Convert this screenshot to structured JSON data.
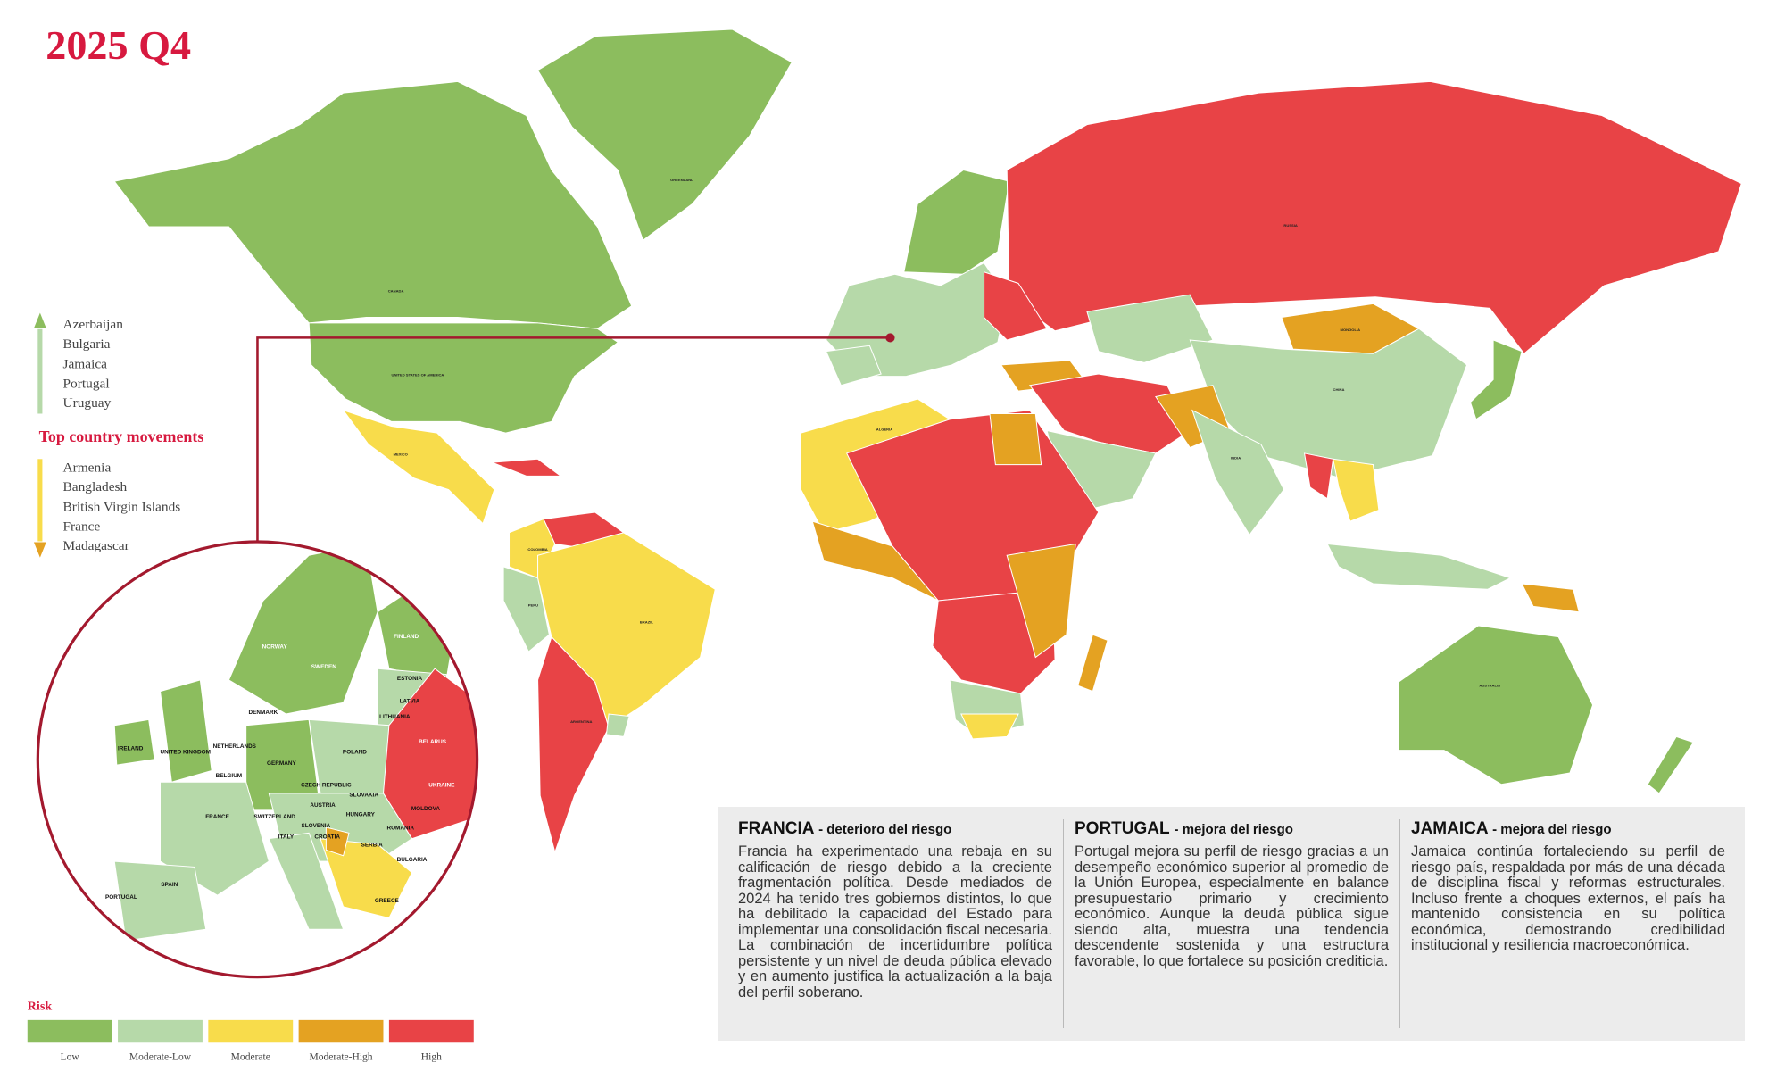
{
  "header": {
    "title": "2025 Q4"
  },
  "movements": {
    "title": "Top country movements",
    "up": [
      "Azerbaijan",
      "Bulgaria",
      "Jamaica",
      "Portugal",
      "Uruguay"
    ],
    "down": [
      "Armenia",
      "Bangladesh",
      "British Virgin Islands",
      "France",
      "Madagascar"
    ]
  },
  "legend": {
    "title": "Risk",
    "items": [
      {
        "label": "Low",
        "color": "#8cbd5e"
      },
      {
        "label": "Moderate-Low",
        "color": "#b6d9a9"
      },
      {
        "label": "Moderate",
        "color": "#f8dc4b"
      },
      {
        "label": "Moderate-High",
        "color": "#e4a222"
      },
      {
        "label": "High",
        "color": "#e84346"
      }
    ]
  },
  "map_labels": [
    "GREENLAND",
    "CANADA",
    "UNITED STATES OF AMERICA",
    "MEXICO",
    "BRAZIL",
    "ARGENTINA",
    "RUSSIA",
    "CHINA",
    "INDIA",
    "MONGOLIA",
    "ALGERIA",
    "AUSTRALIA",
    "PERU",
    "COLOMBIA"
  ],
  "zoom_labels": [
    "NORWAY",
    "SWEDEN",
    "FINLAND",
    "ESTONIA",
    "LATVIA",
    "LITHUANIA",
    "DENMARK",
    "IRELAND",
    "UNITED KINGDOM",
    "NETHERLANDS",
    "BELGIUM",
    "GERMANY",
    "POLAND",
    "BELARUS",
    "UKRAINE",
    "CZECH REPUBLIC",
    "SLOVAKIA",
    "AUSTRIA",
    "HUNGARY",
    "MOLDOVA",
    "ROMANIA",
    "FRANCE",
    "SWITZERLAND",
    "ITALY",
    "SLOVENIA",
    "CROATIA",
    "SERBIA",
    "BULGARIA",
    "SPAIN",
    "PORTUGAL",
    "GREECE"
  ],
  "panels": [
    {
      "country": "FRANCIA",
      "subtitle": "- deterioro del riesgo",
      "text": "Francia ha experimentado una rebaja en su calificación de riesgo debido a la creciente fragmentación política. Desde mediados de 2024 ha tenido tres gobiernos distintos, lo que ha debilitado la capacidad del Estado para implementar una consolidación fiscal necesaria. La combinación de incertidumbre política persistente y un nivel de deuda pública elevado y en aumento justifica la actualización a la baja del perfil soberano."
    },
    {
      "country": "PORTUGAL",
      "subtitle": "- mejora del riesgo",
      "text": "Portugal mejora su perfil de riesgo gracias a un desempeño económico superior al promedio de la Unión Europea, especialmente en balance presupuestario primario y crecimiento económico. Aunque la deuda pública sigue siendo alta, muestra una tendencia descendente sostenida y una estructura favorable, lo que fortalece su posición crediticia."
    },
    {
      "country": "JAMAICA",
      "subtitle": "- mejora del riesgo",
      "text": "Jamaica continúa fortaleciendo su perfil de riesgo país, respaldada por más de una década de disciplina fiscal y reformas estructurales. Incluso frente a choques externos, el país ha mantenido consistencia en su política económica, demostrando credibilidad institucional y resiliencia macroeconómica."
    }
  ]
}
